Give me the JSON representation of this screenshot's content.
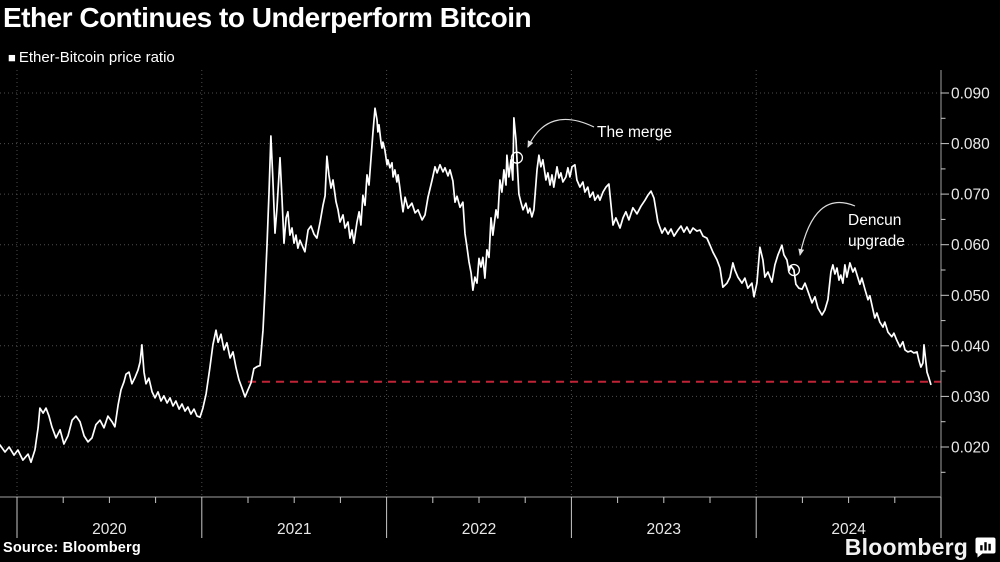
{
  "header": {
    "title": "Ether Continues to Underperform Bitcoin"
  },
  "legend": {
    "marker": "■",
    "label": "Ether-Bitcoin price ratio"
  },
  "footer": {
    "source": "Source: Bloomberg",
    "brand": "Bloomberg"
  },
  "colors": {
    "background": "#000000",
    "series_line": "#ffffff",
    "reference_line": "#bf2336",
    "gridline": "#4e4e4e",
    "axis_line": "#a0a0a0",
    "tick": "#c8c8c8",
    "tick_label_text": "#e8e8e8",
    "annotation_text": "#ffffff"
  },
  "chart_data": {
    "type": "line",
    "title": "Ether Continues to Underperform Bitcoin",
    "series_name": "Ether-Bitcoin price ratio",
    "xlabel": "",
    "ylabel": "",
    "grid": true,
    "legend_position": "top-left",
    "x_axis": {
      "range": [
        2019.908,
        2025.0
      ],
      "tick_years": [
        2020,
        2021,
        2022,
        2023,
        2024,
        2025
      ],
      "minor_tick_years": [
        2020.25,
        2020.5,
        2020.75,
        2021.25,
        2021.5,
        2021.75,
        2022.25,
        2022.5,
        2022.75,
        2023.25,
        2023.5,
        2023.75,
        2024.25,
        2024.5,
        2024.75
      ],
      "year_labels": [
        "2020",
        "2021",
        "2022",
        "2023",
        "2024"
      ],
      "year_label_centers": [
        2020.5,
        2021.5,
        2022.5,
        2023.5,
        2024.5
      ]
    },
    "y_axis": {
      "range": [
        0.0101,
        0.0945
      ],
      "tick_values": [
        0.02,
        0.03,
        0.04,
        0.05,
        0.06,
        0.07,
        0.08,
        0.09
      ],
      "tick_labels": [
        "0.020",
        "0.030",
        "0.040",
        "0.050",
        "0.060",
        "0.070",
        "0.080",
        "0.090"
      ],
      "minor_tick_values": [
        0.015,
        0.025,
        0.035,
        0.045,
        0.055,
        0.065,
        0.075,
        0.085
      ]
    },
    "reference_line": {
      "value": 0.0329,
      "start_year": 2021.25,
      "end_year": 2025.0,
      "style": "dashed"
    },
    "events": [
      {
        "name": "the-merge",
        "label": "The merge",
        "year": 2022.705,
        "value": 0.0772
      },
      {
        "name": "dencun-upgrade",
        "label": "Dencun upgrade",
        "year": 2024.204,
        "value": 0.055
      }
    ],
    "points": [
      [
        2019.908,
        0.0204
      ],
      [
        2019.935,
        0.019
      ],
      [
        2019.957,
        0.02
      ],
      [
        2019.984,
        0.0184
      ],
      [
        2020.005,
        0.0194
      ],
      [
        2020.032,
        0.0174
      ],
      [
        2020.06,
        0.0186
      ],
      [
        2020.076,
        0.017
      ],
      [
        2020.097,
        0.0194
      ],
      [
        2020.114,
        0.0238
      ],
      [
        2020.124,
        0.0277
      ],
      [
        2020.141,
        0.0267
      ],
      [
        2020.157,
        0.0277
      ],
      [
        2020.173,
        0.0261
      ],
      [
        2020.189,
        0.024
      ],
      [
        2020.211,
        0.0218
      ],
      [
        2020.233,
        0.0234
      ],
      [
        2020.254,
        0.0206
      ],
      [
        2020.276,
        0.0222
      ],
      [
        2020.298,
        0.0253
      ],
      [
        2020.319,
        0.0261
      ],
      [
        2020.341,
        0.025
      ],
      [
        2020.363,
        0.0222
      ],
      [
        2020.384,
        0.021
      ],
      [
        2020.406,
        0.0218
      ],
      [
        2020.427,
        0.0244
      ],
      [
        2020.449,
        0.0253
      ],
      [
        2020.471,
        0.0238
      ],
      [
        2020.492,
        0.0261
      ],
      [
        2020.514,
        0.025
      ],
      [
        2020.53,
        0.024
      ],
      [
        2020.547,
        0.0283
      ],
      [
        2020.563,
        0.0313
      ],
      [
        2020.579,
        0.0329
      ],
      [
        2020.59,
        0.0344
      ],
      [
        2020.606,
        0.0348
      ],
      [
        2020.622,
        0.0325
      ],
      [
        2020.639,
        0.0338
      ],
      [
        2020.655,
        0.0352
      ],
      [
        2020.666,
        0.0368
      ],
      [
        2020.676,
        0.0402
      ],
      [
        2020.687,
        0.0348
      ],
      [
        2020.698,
        0.0325
      ],
      [
        2020.714,
        0.0336
      ],
      [
        2020.731,
        0.0309
      ],
      [
        2020.747,
        0.0297
      ],
      [
        2020.763,
        0.0309
      ],
      [
        2020.779,
        0.0291
      ],
      [
        2020.795,
        0.0301
      ],
      [
        2020.812,
        0.0287
      ],
      [
        2020.828,
        0.0297
      ],
      [
        2020.844,
        0.0281
      ],
      [
        2020.86,
        0.0291
      ],
      [
        2020.877,
        0.0275
      ],
      [
        2020.893,
        0.0285
      ],
      [
        2020.909,
        0.0271
      ],
      [
        2020.925,
        0.0279
      ],
      [
        2020.941,
        0.0265
      ],
      [
        2020.958,
        0.0275
      ],
      [
        2020.974,
        0.0261
      ],
      [
        2020.99,
        0.0259
      ],
      [
        2021.006,
        0.0277
      ],
      [
        2021.023,
        0.0305
      ],
      [
        2021.044,
        0.0357
      ],
      [
        2021.06,
        0.0402
      ],
      [
        2021.077,
        0.0431
      ],
      [
        2021.088,
        0.0407
      ],
      [
        2021.104,
        0.0423
      ],
      [
        2021.12,
        0.0392
      ],
      [
        2021.136,
        0.0406
      ],
      [
        2021.153,
        0.0376
      ],
      [
        2021.169,
        0.0388
      ],
      [
        2021.185,
        0.0357
      ],
      [
        2021.201,
        0.0333
      ],
      [
        2021.217,
        0.0317
      ],
      [
        2021.234,
        0.0299
      ],
      [
        2021.25,
        0.0313
      ],
      [
        2021.266,
        0.0327
      ],
      [
        2021.282,
        0.0355
      ],
      [
        2021.299,
        0.0359
      ],
      [
        2021.315,
        0.0361
      ],
      [
        2021.331,
        0.0431
      ],
      [
        2021.342,
        0.051
      ],
      [
        2021.353,
        0.0599
      ],
      [
        2021.364,
        0.0708
      ],
      [
        2021.374,
        0.0815
      ],
      [
        2021.385,
        0.0728
      ],
      [
        2021.396,
        0.0623
      ],
      [
        2021.407,
        0.0673
      ],
      [
        2021.423,
        0.0772
      ],
      [
        2021.434,
        0.0692
      ],
      [
        2021.445,
        0.0603
      ],
      [
        2021.456,
        0.0653
      ],
      [
        2021.466,
        0.0665
      ],
      [
        2021.477,
        0.0619
      ],
      [
        2021.488,
        0.0633
      ],
      [
        2021.499,
        0.0603
      ],
      [
        2021.51,
        0.0619
      ],
      [
        2021.52,
        0.0593
      ],
      [
        2021.531,
        0.0609
      ],
      [
        2021.548,
        0.0594
      ],
      [
        2021.558,
        0.0586
      ],
      [
        2021.575,
        0.0629
      ],
      [
        2021.591,
        0.0637
      ],
      [
        2021.607,
        0.0621
      ],
      [
        2021.623,
        0.0613
      ],
      [
        2021.64,
        0.0645
      ],
      [
        2021.656,
        0.0678
      ],
      [
        2021.667,
        0.0697
      ],
      [
        2021.677,
        0.0775
      ],
      [
        2021.688,
        0.0738
      ],
      [
        2021.699,
        0.0712
      ],
      [
        2021.71,
        0.0728
      ],
      [
        2021.726,
        0.0685
      ],
      [
        2021.737,
        0.0669
      ],
      [
        2021.748,
        0.0645
      ],
      [
        2021.764,
        0.0659
      ],
      [
        2021.775,
        0.0633
      ],
      [
        2021.791,
        0.0645
      ],
      [
        2021.802,
        0.0613
      ],
      [
        2021.813,
        0.0629
      ],
      [
        2021.823,
        0.0603
      ],
      [
        2021.84,
        0.0645
      ],
      [
        2021.851,
        0.0665
      ],
      [
        2021.861,
        0.0639
      ],
      [
        2021.872,
        0.0698
      ],
      [
        2021.883,
        0.0678
      ],
      [
        2021.894,
        0.0738
      ],
      [
        2021.905,
        0.0718
      ],
      [
        2021.921,
        0.0797
      ],
      [
        2021.926,
        0.0821
      ],
      [
        2021.937,
        0.087
      ],
      [
        2021.948,
        0.0847
      ],
      [
        2021.953,
        0.0823
      ],
      [
        2021.959,
        0.0837
      ],
      [
        2021.97,
        0.0801
      ],
      [
        2021.975,
        0.0791
      ],
      [
        2021.98,
        0.0803
      ],
      [
        2021.991,
        0.0787
      ],
      [
        2022.002,
        0.0758
      ],
      [
        2022.007,
        0.0768
      ],
      [
        2022.018,
        0.0752
      ],
      [
        2022.029,
        0.0762
      ],
      [
        2022.035,
        0.0734
      ],
      [
        2022.045,
        0.0748
      ],
      [
        2022.056,
        0.0724
      ],
      [
        2022.062,
        0.0738
      ],
      [
        2022.072,
        0.0712
      ],
      [
        2022.078,
        0.0694
      ],
      [
        2022.089,
        0.0665
      ],
      [
        2022.1,
        0.0694
      ],
      [
        2022.116,
        0.0672
      ],
      [
        2022.137,
        0.0682
      ],
      [
        2022.154,
        0.0663
      ],
      [
        2022.17,
        0.0669
      ],
      [
        2022.192,
        0.0649
      ],
      [
        2022.208,
        0.0659
      ],
      [
        2022.224,
        0.0694
      ],
      [
        2022.246,
        0.0728
      ],
      [
        2022.262,
        0.0754
      ],
      [
        2022.273,
        0.0742
      ],
      [
        2022.289,
        0.0758
      ],
      [
        2022.305,
        0.0744
      ],
      [
        2022.316,
        0.0752
      ],
      [
        2022.332,
        0.0736
      ],
      [
        2022.343,
        0.0748
      ],
      [
        2022.359,
        0.0726
      ],
      [
        2022.37,
        0.0684
      ],
      [
        2022.381,
        0.0696
      ],
      [
        2022.397,
        0.0674
      ],
      [
        2022.413,
        0.0684
      ],
      [
        2022.424,
        0.0622
      ],
      [
        2022.435,
        0.0595
      ],
      [
        2022.446,
        0.0566
      ],
      [
        2022.457,
        0.0544
      ],
      [
        2022.467,
        0.051
      ],
      [
        2022.478,
        0.0536
      ],
      [
        2022.489,
        0.0524
      ],
      [
        2022.5,
        0.0573
      ],
      [
        2022.511,
        0.0556
      ],
      [
        2022.521,
        0.0575
      ],
      [
        2022.532,
        0.0534
      ],
      [
        2022.543,
        0.059
      ],
      [
        2022.554,
        0.0575
      ],
      [
        2022.565,
        0.0653
      ],
      [
        2022.575,
        0.0619
      ],
      [
        2022.592,
        0.0669
      ],
      [
        2022.602,
        0.0653
      ],
      [
        2022.613,
        0.0728
      ],
      [
        2022.624,
        0.0704
      ],
      [
        2022.635,
        0.0748
      ],
      [
        2022.646,
        0.0718
      ],
      [
        2022.651,
        0.0777
      ],
      [
        2022.662,
        0.0734
      ],
      [
        2022.673,
        0.0768
      ],
      [
        2022.683,
        0.0728
      ],
      [
        2022.689,
        0.0851
      ],
      [
        2022.7,
        0.0807
      ],
      [
        2022.705,
        0.0772
      ],
      [
        2022.716,
        0.07
      ],
      [
        2022.727,
        0.0684
      ],
      [
        2022.738,
        0.0669
      ],
      [
        2022.754,
        0.0682
      ],
      [
        2022.765,
        0.0663
      ],
      [
        2022.775,
        0.0672
      ],
      [
        2022.786,
        0.0655
      ],
      [
        2022.797,
        0.0669
      ],
      [
        2022.814,
        0.0748
      ],
      [
        2022.824,
        0.0777
      ],
      [
        2022.835,
        0.0754
      ],
      [
        2022.846,
        0.0768
      ],
      [
        2022.862,
        0.0728
      ],
      [
        2022.873,
        0.0742
      ],
      [
        2022.884,
        0.0718
      ],
      [
        2022.895,
        0.0738
      ],
      [
        2022.905,
        0.0714
      ],
      [
        2022.922,
        0.0754
      ],
      [
        2022.933,
        0.0732
      ],
      [
        2022.943,
        0.0742
      ],
      [
        2022.954,
        0.0724
      ],
      [
        2022.97,
        0.0734
      ],
      [
        2022.981,
        0.0752
      ],
      [
        2022.992,
        0.0734
      ],
      [
        2023.003,
        0.0754
      ],
      [
        2023.019,
        0.0758
      ],
      [
        2023.03,
        0.0728
      ],
      [
        2023.046,
        0.0714
      ],
      [
        2023.062,
        0.0724
      ],
      [
        2023.073,
        0.0704
      ],
      [
        2023.089,
        0.0714
      ],
      [
        2023.1,
        0.0694
      ],
      [
        2023.117,
        0.0704
      ],
      [
        2023.127,
        0.0688
      ],
      [
        2023.144,
        0.0698
      ],
      [
        2023.154,
        0.0688
      ],
      [
        2023.171,
        0.0704
      ],
      [
        2023.187,
        0.0714
      ],
      [
        2023.203,
        0.072
      ],
      [
        2023.225,
        0.0639
      ],
      [
        2023.241,
        0.0653
      ],
      [
        2023.263,
        0.0633
      ],
      [
        2023.279,
        0.0653
      ],
      [
        2023.295,
        0.0665
      ],
      [
        2023.311,
        0.0649
      ],
      [
        2023.333,
        0.0673
      ],
      [
        2023.355,
        0.0661
      ],
      [
        2023.376,
        0.0676
      ],
      [
        2023.398,
        0.0688
      ],
      [
        2023.414,
        0.0698
      ],
      [
        2023.431,
        0.0706
      ],
      [
        2023.447,
        0.0692
      ],
      [
        2023.468,
        0.0645
      ],
      [
        2023.49,
        0.0623
      ],
      [
        2023.506,
        0.0633
      ],
      [
        2023.523,
        0.0621
      ],
      [
        2023.539,
        0.0631
      ],
      [
        2023.555,
        0.0617
      ],
      [
        2023.577,
        0.0629
      ],
      [
        2023.593,
        0.0637
      ],
      [
        2023.609,
        0.0625
      ],
      [
        2023.625,
        0.0635
      ],
      [
        2023.642,
        0.0623
      ],
      [
        2023.658,
        0.0633
      ],
      [
        2023.679,
        0.0627
      ],
      [
        2023.696,
        0.0629
      ],
      [
        2023.712,
        0.0617
      ],
      [
        2023.733,
        0.0613
      ],
      [
        2023.75,
        0.0599
      ],
      [
        2023.766,
        0.0585
      ],
      [
        2023.788,
        0.057
      ],
      [
        2023.804,
        0.0554
      ],
      [
        2023.82,
        0.0516
      ],
      [
        2023.842,
        0.0524
      ],
      [
        2023.858,
        0.0536
      ],
      [
        2023.874,
        0.0564
      ],
      [
        2023.885,
        0.055
      ],
      [
        2023.901,
        0.0536
      ],
      [
        2023.923,
        0.0524
      ],
      [
        2023.939,
        0.0534
      ],
      [
        2023.955,
        0.0514
      ],
      [
        2023.977,
        0.0524
      ],
      [
        2023.988,
        0.0497
      ],
      [
        2024.004,
        0.0524
      ],
      [
        2024.02,
        0.0595
      ],
      [
        2024.036,
        0.057
      ],
      [
        2024.047,
        0.0536
      ],
      [
        2024.064,
        0.0546
      ],
      [
        2024.085,
        0.0526
      ],
      [
        2024.101,
        0.056
      ],
      [
        2024.118,
        0.058
      ],
      [
        2024.139,
        0.0599
      ],
      [
        2024.15,
        0.058
      ],
      [
        2024.166,
        0.057
      ],
      [
        2024.177,
        0.0548
      ],
      [
        2024.188,
        0.0558
      ],
      [
        2024.204,
        0.055
      ],
      [
        2024.215,
        0.0522
      ],
      [
        2024.231,
        0.0514
      ],
      [
        2024.248,
        0.0512
      ],
      [
        2024.264,
        0.0524
      ],
      [
        2024.28,
        0.0508
      ],
      [
        2024.302,
        0.0485
      ],
      [
        2024.318,
        0.0497
      ],
      [
        2024.334,
        0.0475
      ],
      [
        2024.356,
        0.0461
      ],
      [
        2024.372,
        0.0471
      ],
      [
        2024.388,
        0.0491
      ],
      [
        2024.404,
        0.0546
      ],
      [
        2024.415,
        0.056
      ],
      [
        2024.426,
        0.0542
      ],
      [
        2024.437,
        0.0554
      ],
      [
        2024.448,
        0.053
      ],
      [
        2024.458,
        0.054
      ],
      [
        2024.469,
        0.0524
      ],
      [
        2024.48,
        0.056
      ],
      [
        2024.491,
        0.0536
      ],
      [
        2024.507,
        0.0564
      ],
      [
        2024.523,
        0.0546
      ],
      [
        2024.534,
        0.0554
      ],
      [
        2024.551,
        0.0534
      ],
      [
        2024.561,
        0.0522
      ],
      [
        2024.572,
        0.0534
      ],
      [
        2024.588,
        0.0512
      ],
      [
        2024.605,
        0.0491
      ],
      [
        2024.615,
        0.0499
      ],
      [
        2024.632,
        0.0471
      ],
      [
        2024.642,
        0.0455
      ],
      [
        2024.653,
        0.0465
      ],
      [
        2024.669,
        0.0447
      ],
      [
        2024.686,
        0.0437
      ],
      [
        2024.696,
        0.0447
      ],
      [
        2024.713,
        0.0427
      ],
      [
        2024.734,
        0.0418
      ],
      [
        2024.745,
        0.0425
      ],
      [
        2024.761,
        0.0411
      ],
      [
        2024.778,
        0.0398
      ],
      [
        2024.794,
        0.0408
      ],
      [
        2024.805,
        0.0392
      ],
      [
        2024.821,
        0.0388
      ],
      [
        2024.837,
        0.039
      ],
      [
        2024.853,
        0.0386
      ],
      [
        2024.87,
        0.0388
      ],
      [
        2024.88,
        0.0372
      ],
      [
        2024.891,
        0.0358
      ],
      [
        2024.902,
        0.0366
      ],
      [
        2024.908,
        0.0402
      ],
      [
        2024.924,
        0.0348
      ],
      [
        2024.935,
        0.0336
      ],
      [
        2024.945,
        0.0324
      ]
    ]
  }
}
